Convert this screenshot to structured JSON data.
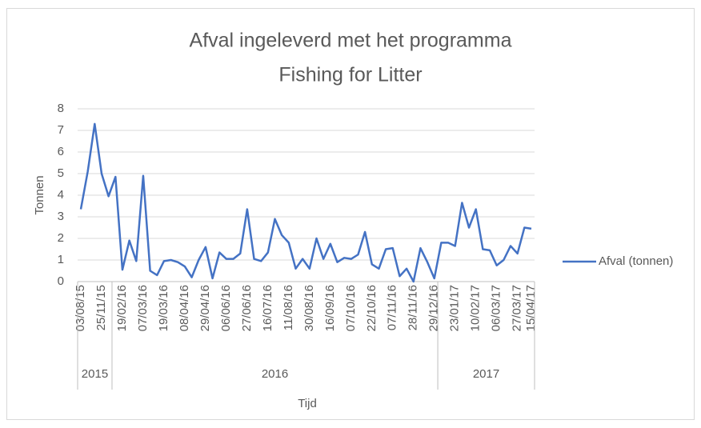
{
  "chart_data": {
    "type": "line",
    "title": [
      "Afval ingeleverd met het programma",
      "Fishing for Litter"
    ],
    "y_label": "Tonnen",
    "x_label": "Tijd",
    "categories": [
      "03/08/15",
      null,
      null,
      "25/11/15",
      null,
      null,
      "19/02/16",
      null,
      null,
      "07/03/16",
      null,
      null,
      "19/03/16",
      null,
      null,
      "08/04/16",
      null,
      null,
      "29/04/16",
      null,
      null,
      "06/06/16",
      null,
      null,
      "27/06/16",
      null,
      null,
      "16/07/16",
      null,
      null,
      "11/08/16",
      null,
      null,
      "30/08/16",
      null,
      null,
      "16/09/16",
      null,
      null,
      "07/10/16",
      null,
      null,
      "22/10/16",
      null,
      null,
      "07/11/16",
      null,
      null,
      "28/11/16",
      null,
      null,
      "29/12/16",
      null,
      null,
      "23/01/17",
      null,
      null,
      "10/02/17",
      null,
      null,
      "06/03/17",
      null,
      null,
      "27/03/17",
      null,
      "15/04/17"
    ],
    "category_groups": [
      "2015",
      null,
      null,
      null,
      null,
      "2016",
      null,
      null,
      null,
      null,
      null,
      null,
      null,
      null,
      null,
      null,
      null,
      null,
      null,
      null,
      null,
      null,
      null,
      null,
      null,
      null,
      null,
      null,
      null,
      null,
      null,
      null,
      null,
      null,
      null,
      null,
      null,
      null,
      null,
      null,
      null,
      null,
      null,
      null,
      null,
      null,
      null,
      null,
      null,
      null,
      null,
      null,
      "2017",
      null,
      null,
      null,
      null,
      null,
      null,
      null,
      null,
      null,
      null,
      null,
      null,
      null
    ],
    "series": [
      {
        "name": "Afval (tonnen)",
        "color": "#4472c4",
        "values": [
          3.35,
          5.1,
          7.3,
          5.0,
          3.95,
          4.85,
          0.55,
          1.9,
          0.95,
          4.9,
          0.5,
          0.3,
          0.95,
          1.0,
          0.9,
          0.7,
          0.2,
          1.0,
          1.6,
          0.15,
          1.35,
          1.05,
          1.05,
          1.3,
          3.35,
          1.05,
          0.95,
          1.35,
          2.9,
          2.15,
          1.8,
          0.6,
          1.05,
          0.6,
          2.0,
          1.05,
          1.75,
          0.9,
          1.1,
          1.05,
          1.25,
          2.3,
          0.8,
          0.6,
          1.5,
          1.55,
          0.25,
          0.6,
          0.0,
          1.55,
          0.9,
          0.15,
          1.8,
          1.8,
          1.65,
          3.65,
          2.5,
          3.35,
          1.5,
          1.45,
          0.75,
          1.0,
          1.65,
          1.3,
          2.5,
          2.45
        ]
      }
    ],
    "ylim": [
      0,
      8
    ],
    "yticks": [
      0,
      1,
      2,
      3,
      4,
      5,
      6,
      7,
      8
    ],
    "grid": true,
    "legend": "right"
  }
}
